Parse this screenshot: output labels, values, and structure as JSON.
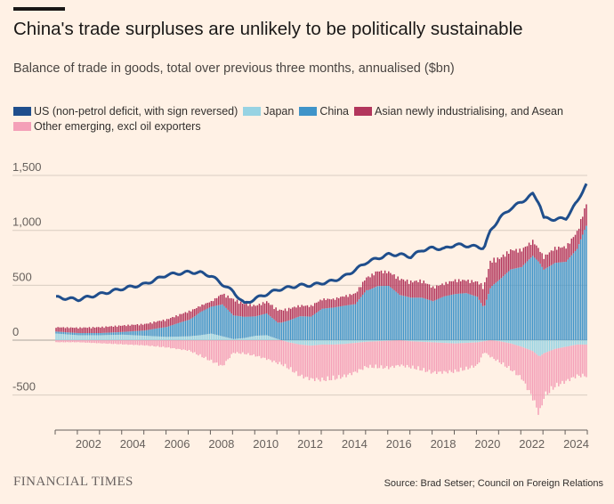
{
  "header": {
    "title": "China's trade surpluses are unlikely to be politically sustainable",
    "subtitle": "Balance of trade in goods, total over previous three months, annualised ($bn)"
  },
  "legend": [
    {
      "label": "US (non-petrol deficit, with sign reversed)",
      "color": "#1f4e8c",
      "icon": "line-swatch"
    },
    {
      "label": "Japan",
      "color": "#97d3e3",
      "icon": "bar-swatch"
    },
    {
      "label": "China",
      "color": "#3f94c9",
      "icon": "bar-swatch"
    },
    {
      "label": "Asian newly industrialising, and Asean",
      "color": "#b2365c",
      "icon": "bar-swatch"
    },
    {
      "label": "Other emerging, excl oil exporters",
      "color": "#f4a0b8",
      "icon": "bar-swatch"
    }
  ],
  "footer": {
    "brand": "FINANCIAL TIMES",
    "source": "Source: Brad Setser; Council on Foreign Relations"
  },
  "chart_data": {
    "type": "bar",
    "stacked": true,
    "frequency": "monthly",
    "x_range": [
      "2001-01",
      "2024-12"
    ],
    "x_ticks": [
      "2002",
      "2004",
      "2006",
      "2008",
      "2010",
      "2012",
      "2014",
      "2016",
      "2018",
      "2020",
      "2022",
      "2024"
    ],
    "y_ticks": [
      -500,
      0,
      500,
      1000,
      1500
    ],
    "y_tick_labels": [
      "-500",
      "0",
      "500",
      "1,000",
      "1,500"
    ],
    "ylim": [
      -800,
      1500
    ],
    "grid": "horizontal",
    "legend_position": "top",
    "colors": {
      "us": "#1f4e8c",
      "japan": "#97d3e3",
      "china": "#3f94c9",
      "asia": "#b2365c",
      "other": "#f4a0b8"
    },
    "anchors": {
      "years": [
        2001.0,
        2002.0,
        2003.0,
        2004.0,
        2005.0,
        2006.0,
        2007.0,
        2007.5,
        2008.0,
        2008.5,
        2009.0,
        2009.5,
        2010.0,
        2010.5,
        2011.0,
        2011.5,
        2012.0,
        2012.5,
        2013.0,
        2013.5,
        2014.0,
        2014.5,
        2015.0,
        2015.5,
        2016.0,
        2016.5,
        2017.0,
        2017.5,
        2018.0,
        2018.5,
        2019.0,
        2019.5,
        2020.0,
        2020.3,
        2020.6,
        2021.0,
        2021.5,
        2022.0,
        2022.5,
        2022.8,
        2023.0,
        2023.5,
        2024.0,
        2024.5,
        2024.9
      ],
      "us": [
        390,
        370,
        420,
        470,
        510,
        595,
        620,
        615,
        585,
        510,
        440,
        330,
        380,
        420,
        460,
        480,
        500,
        500,
        520,
        540,
        580,
        640,
        710,
        745,
        780,
        780,
        760,
        820,
        840,
        830,
        870,
        860,
        850,
        840,
        1000,
        1110,
        1200,
        1260,
        1330,
        1250,
        1110,
        1100,
        1110,
        1260,
        1420
      ],
      "japan": [
        60,
        45,
        45,
        50,
        40,
        30,
        35,
        45,
        60,
        35,
        10,
        20,
        40,
        45,
        10,
        -20,
        -40,
        -50,
        -40,
        -40,
        -35,
        -25,
        -15,
        -10,
        -5,
        0,
        -10,
        -15,
        -20,
        -25,
        -30,
        -25,
        -20,
        -10,
        0,
        -10,
        -30,
        -60,
        -100,
        -150,
        -120,
        -80,
        -60,
        -40,
        -40
      ],
      "china": [
        20,
        20,
        20,
        25,
        50,
        100,
        180,
        250,
        280,
        320,
        230,
        200,
        180,
        200,
        150,
        180,
        220,
        220,
        300,
        320,
        350,
        380,
        550,
        580,
        560,
        450,
        410,
        400,
        360,
        400,
        420,
        430,
        400,
        300,
        500,
        580,
        700,
        750,
        900,
        850,
        780,
        820,
        800,
        900,
        1100
      ],
      "asia": [
        40,
        50,
        55,
        60,
        60,
        70,
        80,
        60,
        50,
        100,
        150,
        120,
        100,
        110,
        120,
        110,
        100,
        100,
        90,
        80,
        90,
        100,
        120,
        140,
        130,
        150,
        150,
        160,
        130,
        120,
        130,
        120,
        140,
        200,
        250,
        200,
        180,
        160,
        140,
        120,
        120,
        140,
        140,
        160,
        200
      ],
      "other": [
        -20,
        -20,
        -30,
        -40,
        -50,
        -70,
        -100,
        -150,
        -200,
        -250,
        -120,
        -130,
        -150,
        -180,
        -220,
        -250,
        -300,
        -320,
        -340,
        -330,
        -310,
        -280,
        -240,
        -250,
        -260,
        -240,
        -250,
        -270,
        -290,
        -280,
        -270,
        -250,
        -220,
        -100,
        -160,
        -200,
        -250,
        -300,
        -450,
        -560,
        -420,
        -360,
        -330,
        -300,
        -300
      ]
    },
    "series": [
      {
        "name": "US (non-petrol deficit, with sign reversed)",
        "key": "us",
        "kind": "line"
      },
      {
        "name": "Japan",
        "key": "japan",
        "kind": "bar"
      },
      {
        "name": "China",
        "key": "china",
        "kind": "bar"
      },
      {
        "name": "Asian newly industrialising, and Asean",
        "key": "asia",
        "kind": "bar"
      },
      {
        "name": "Other emerging, excl oil exporters",
        "key": "other",
        "kind": "bar"
      }
    ]
  }
}
